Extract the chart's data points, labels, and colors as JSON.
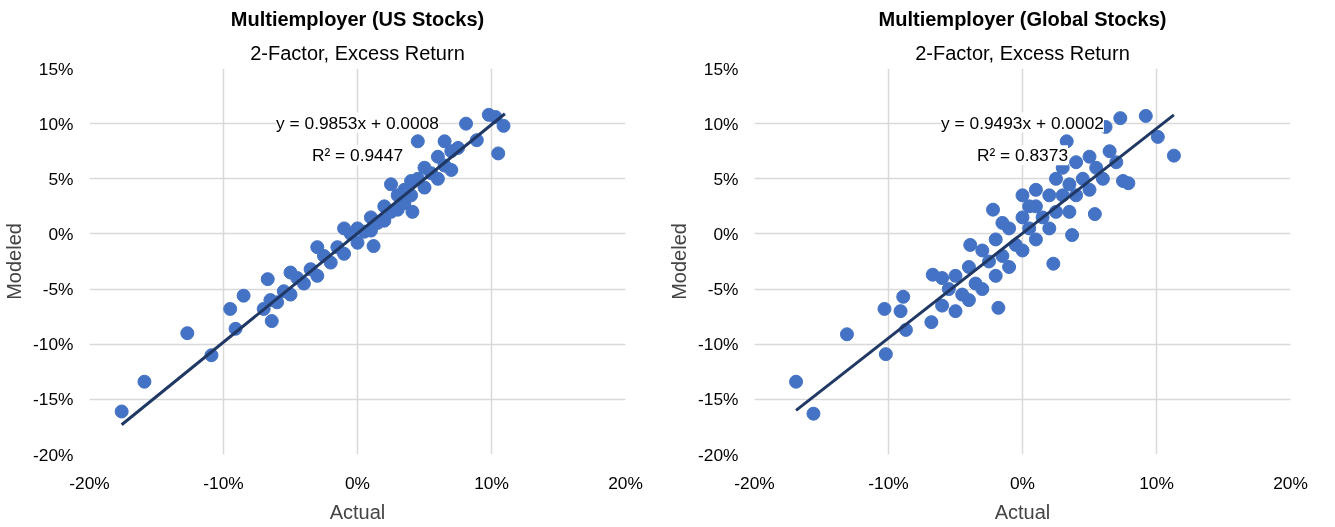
{
  "chart_data": [
    {
      "type": "scatter",
      "title": "Multiemployer (US Stocks)",
      "subtitle": "2-Factor, Excess Return",
      "xlabel": "Actual",
      "ylabel": "Modeled",
      "grid": true,
      "xlim": [
        -20,
        20
      ],
      "ylim": [
        -20,
        15
      ],
      "xticks": [
        {
          "value": -20,
          "label": "-20%"
        },
        {
          "value": -10,
          "label": "-10%"
        },
        {
          "value": 0,
          "label": "0%"
        },
        {
          "value": 10,
          "label": "10%"
        },
        {
          "value": 20,
          "label": "20%"
        }
      ],
      "yticks": [
        {
          "value": -20,
          "label": "-20%"
        },
        {
          "value": -15,
          "label": "-15%"
        },
        {
          "value": -10,
          "label": "-10%"
        },
        {
          "value": -5,
          "label": "-5%"
        },
        {
          "value": 0,
          "label": "0%"
        },
        {
          "value": 5,
          "label": "5%"
        },
        {
          "value": 10,
          "label": "10%"
        },
        {
          "value": 15,
          "label": "15%"
        }
      ],
      "annotations": [
        "y = 0.9853x + 0.0008",
        "R² = 0.9447"
      ],
      "series": [
        {
          "marker": "circle",
          "color": "#4472c4",
          "x": [
            -17.6,
            -15.9,
            -12.7,
            -10.9,
            -9.5,
            -9.1,
            -8.5,
            -7,
            -6.5,
            -6,
            -5.5,
            -5,
            -4.5,
            -4,
            -3.5,
            -3,
            -2.5,
            -2,
            -1.5,
            -1,
            -0.5,
            0,
            0,
            0.5,
            1,
            1,
            1.5,
            2,
            2,
            2.5,
            3,
            3,
            3.5,
            3.5,
            4,
            4,
            4.5,
            5,
            5,
            5.5,
            6,
            6,
            6.5,
            7,
            7,
            7.5,
            4.5,
            8.1,
            8.9,
            9.8,
            10.3,
            10.9,
            10.5,
            4.1,
            1.2,
            -6.7,
            -6.4,
            -3,
            -5,
            6.5,
            2.5,
            -1
          ],
          "values": [
            -16.1,
            -13.4,
            -9.0,
            -11.0,
            -6.8,
            -8.6,
            -5.6,
            -6.8,
            -6.0,
            -6.2,
            -5.2,
            -5.5,
            -4.0,
            -4.5,
            -3.2,
            -3.8,
            -2.0,
            -2.6,
            -1.2,
            -1.8,
            0,
            0.5,
            -0.8,
            0.2,
            1.5,
            0.3,
            1.0,
            2.5,
            1.2,
            2.0,
            3.5,
            2.2,
            4.0,
            2.8,
            4.8,
            3.5,
            5.0,
            6.0,
            4.2,
            5.5,
            7.0,
            5.0,
            6.2,
            7.5,
            5.8,
            7.8,
            8.4,
            10.0,
            8.5,
            10.8,
            10.6,
            9.8,
            7.3,
            2.0,
            -1.1,
            -4.1,
            -7.9,
            -1.2,
            -3.5,
            8.4,
            4.5,
            0.5
          ]
        },
        {
          "type": "line",
          "color": "#203864",
          "x": [
            -17.6,
            11
          ],
          "values": [
            -17.3,
            10.9
          ]
        }
      ]
    },
    {
      "type": "scatter",
      "title": "Multiemployer (Global Stocks)",
      "subtitle": "2-Factor, Excess Return",
      "xlabel": "Actual",
      "ylabel": "Modeled",
      "grid": true,
      "xlim": [
        -20,
        20
      ],
      "ylim": [
        -20,
        15
      ],
      "xticks": [
        {
          "value": -20,
          "label": "-20%"
        },
        {
          "value": -10,
          "label": "-10%"
        },
        {
          "value": 0,
          "label": "0%"
        },
        {
          "value": 10,
          "label": "10%"
        },
        {
          "value": 20,
          "label": "20%"
        }
      ],
      "yticks": [
        {
          "value": -20,
          "label": "-20%"
        },
        {
          "value": -15,
          "label": "-15%"
        },
        {
          "value": -10,
          "label": "-10%"
        },
        {
          "value": -5,
          "label": "-5%"
        },
        {
          "value": 0,
          "label": "0%"
        },
        {
          "value": 5,
          "label": "5%"
        },
        {
          "value": 10,
          "label": "10%"
        },
        {
          "value": 15,
          "label": "15%"
        }
      ],
      "annotations": [
        "y = 0.9493x + 0.0002",
        "R² = 0.8373"
      ],
      "series": [
        {
          "marker": "circle",
          "color": "#4472c4",
          "x": [
            -16.9,
            -15.6,
            -13.1,
            -10.3,
            -10.2,
            -8.9,
            -8.7,
            -9.1,
            -6.8,
            -6.7,
            -3.9,
            -2.2,
            -1.8,
            2.3,
            3.7,
            5.4,
            7.9,
            3.3,
            6.2,
            7.3,
            9.2,
            10.1,
            11.3,
            -6,
            -6,
            -5.5,
            -5,
            -5,
            -4.5,
            -4,
            -4,
            -3.5,
            -3,
            -3,
            -2.5,
            -2,
            -2,
            -1.5,
            -1,
            -1,
            -0.5,
            0,
            0,
            0,
            0.5,
            1,
            1,
            1,
            1.5,
            2,
            2,
            2.5,
            2.5,
            3,
            3,
            3.5,
            3.5,
            4,
            4,
            4.5,
            5,
            5,
            5.5,
            6,
            6.5,
            7,
            7.5,
            -1.5,
            0.5
          ],
          "values": [
            -13.4,
            -16.3,
            -9.1,
            -6.8,
            -10.9,
            -5.7,
            -8.7,
            -7.0,
            -8.0,
            -3.7,
            -1.0,
            2.2,
            -6.7,
            -2.7,
            -0.1,
            1.8,
            4.6,
            8.4,
            9.7,
            10.5,
            10.7,
            8.8,
            7.1,
            -4,
            -6.5,
            -5,
            -7,
            -3.8,
            -5.5,
            -3,
            -6,
            -4.5,
            -1.5,
            -5,
            -2.5,
            -3.8,
            -0.5,
            -2,
            0.5,
            -3,
            -1,
            1.5,
            -1.5,
            3.5,
            0.5,
            2.5,
            -0.5,
            4,
            1.5,
            3.5,
            0.5,
            5,
            2,
            3.5,
            6,
            4.5,
            2,
            6.5,
            3.5,
            5,
            7,
            4,
            6,
            5,
            7.5,
            6.5,
            4.8,
            1,
            2.5
          ]
        },
        {
          "type": "line",
          "color": "#203864",
          "x": [
            -16.9,
            11.3
          ],
          "values": [
            -16.0,
            10.8
          ]
        }
      ]
    }
  ]
}
